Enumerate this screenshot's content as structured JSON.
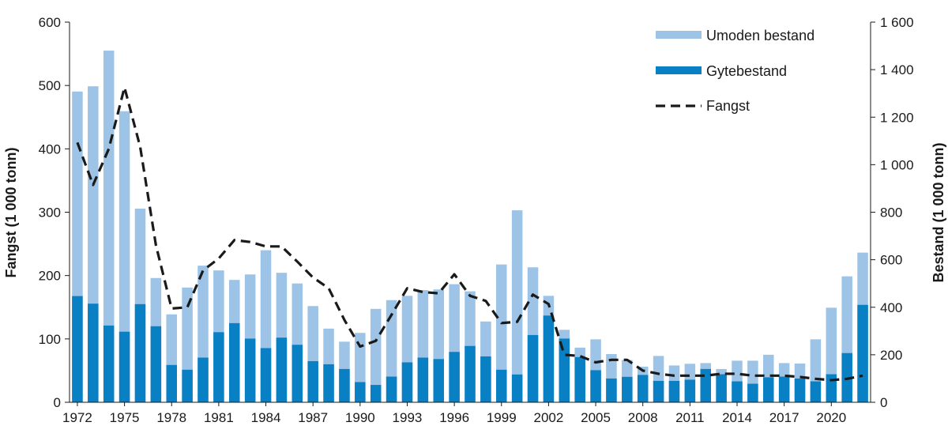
{
  "chart_data": {
    "type": "bar",
    "title": "",
    "ylabel_left": "Fangst (1 000 tonn)",
    "ylabel_right": "Bestand (1 000 tonn)",
    "ylim_left": [
      0,
      600
    ],
    "ylim_right": [
      0,
      1600
    ],
    "left_ticks": [
      "0",
      "100",
      "200",
      "300",
      "400",
      "500",
      "600"
    ],
    "right_ticks": [
      "0",
      "200",
      "400",
      "600",
      "800",
      "1 000",
      "1 200",
      "1 400",
      "1 600"
    ],
    "x_ticks": [
      "1972",
      "1975",
      "1978",
      "1981",
      "1984",
      "1987",
      "1990",
      "1993",
      "1996",
      "1999",
      "2002",
      "2005",
      "2008",
      "2011",
      "2014",
      "2017",
      "2020"
    ],
    "years": [
      1972,
      1973,
      1974,
      1975,
      1976,
      1977,
      1978,
      1979,
      1980,
      1981,
      1982,
      1983,
      1984,
      1985,
      1986,
      1987,
      1988,
      1989,
      1990,
      1991,
      1992,
      1993,
      1994,
      1995,
      1996,
      1997,
      1998,
      1999,
      2000,
      2001,
      2002,
      2003,
      2004,
      2005,
      2006,
      2007,
      2008,
      2009,
      2010,
      2011,
      2012,
      2013,
      2014,
      2015,
      2016,
      2017,
      2018,
      2019,
      2020,
      2021,
      2022
    ],
    "legend_position": "top-right",
    "grid": false,
    "colors": {
      "umoden": "#9dc3e6",
      "gyte": "#0a80c4",
      "fangst": "#1a1a1a"
    },
    "series": [
      {
        "name": "Umoden bestand",
        "axis": "right",
        "style": "bar-stacked-top",
        "total_values": [
          1308,
          1330,
          1480,
          1225,
          815,
          523,
          370,
          483,
          575,
          555,
          515,
          538,
          640,
          545,
          500,
          405,
          310,
          255,
          292,
          393,
          430,
          448,
          472,
          475,
          497,
          467,
          340,
          580,
          808,
          568,
          448,
          305,
          230,
          265,
          203,
          178,
          150,
          195,
          155,
          162,
          165,
          140,
          175,
          175,
          200,
          165,
          163,
          265,
          398,
          530,
          630
        ]
      },
      {
        "name": "Gytebestand",
        "axis": "right",
        "style": "bar",
        "values": [
          447,
          415,
          323,
          297,
          413,
          320,
          157,
          137,
          188,
          295,
          333,
          268,
          228,
          272,
          242,
          173,
          160,
          140,
          85,
          73,
          108,
          168,
          188,
          182,
          212,
          237,
          193,
          137,
          117,
          283,
          365,
          268,
          190,
          135,
          100,
          107,
          115,
          90,
          90,
          95,
          140,
          118,
          88,
          78,
          105,
          108,
          100,
          88,
          118,
          207,
          410
        ]
      },
      {
        "name": "Fangst",
        "axis": "left",
        "style": "dashed-line",
        "values": [
          410,
          343,
          400,
          497,
          403,
          248,
          148,
          150,
          208,
          227,
          256,
          253,
          246,
          246,
          222,
          197,
          180,
          130,
          88,
          97,
          138,
          180,
          174,
          172,
          202,
          168,
          160,
          125,
          127,
          170,
          155,
          75,
          73,
          63,
          67,
          67,
          50,
          45,
          42,
          42,
          42,
          45,
          45,
          42,
          42,
          42,
          40,
          37,
          35,
          37,
          42
        ]
      }
    ]
  }
}
